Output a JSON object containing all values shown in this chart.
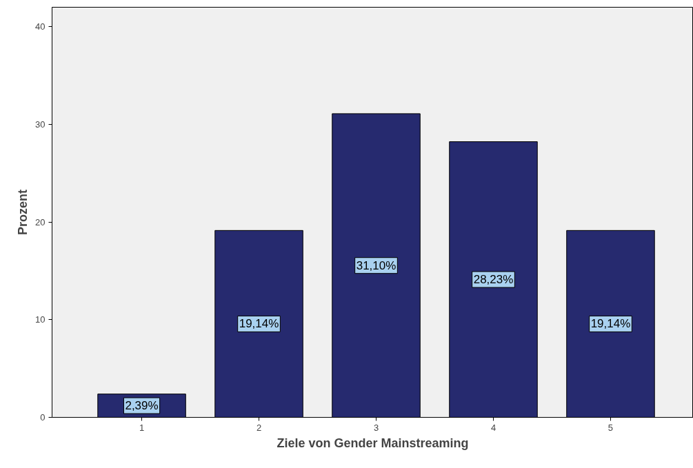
{
  "chart_data": {
    "type": "bar",
    "xlabel": "Ziele von Gender Mainstreaming",
    "ylabel": "Prozent",
    "categories": [
      "1",
      "2",
      "3",
      "4",
      "5"
    ],
    "values": [
      2.39,
      19.14,
      31.1,
      28.23,
      19.14
    ],
    "value_labels": [
      "2,39%",
      "19,14%",
      "31,10%",
      "28,23%",
      "19,14%"
    ],
    "color": "#262a6f",
    "ylim": [
      0,
      42
    ],
    "yticks": [
      0,
      10,
      20,
      30,
      40
    ],
    "grid": false
  }
}
